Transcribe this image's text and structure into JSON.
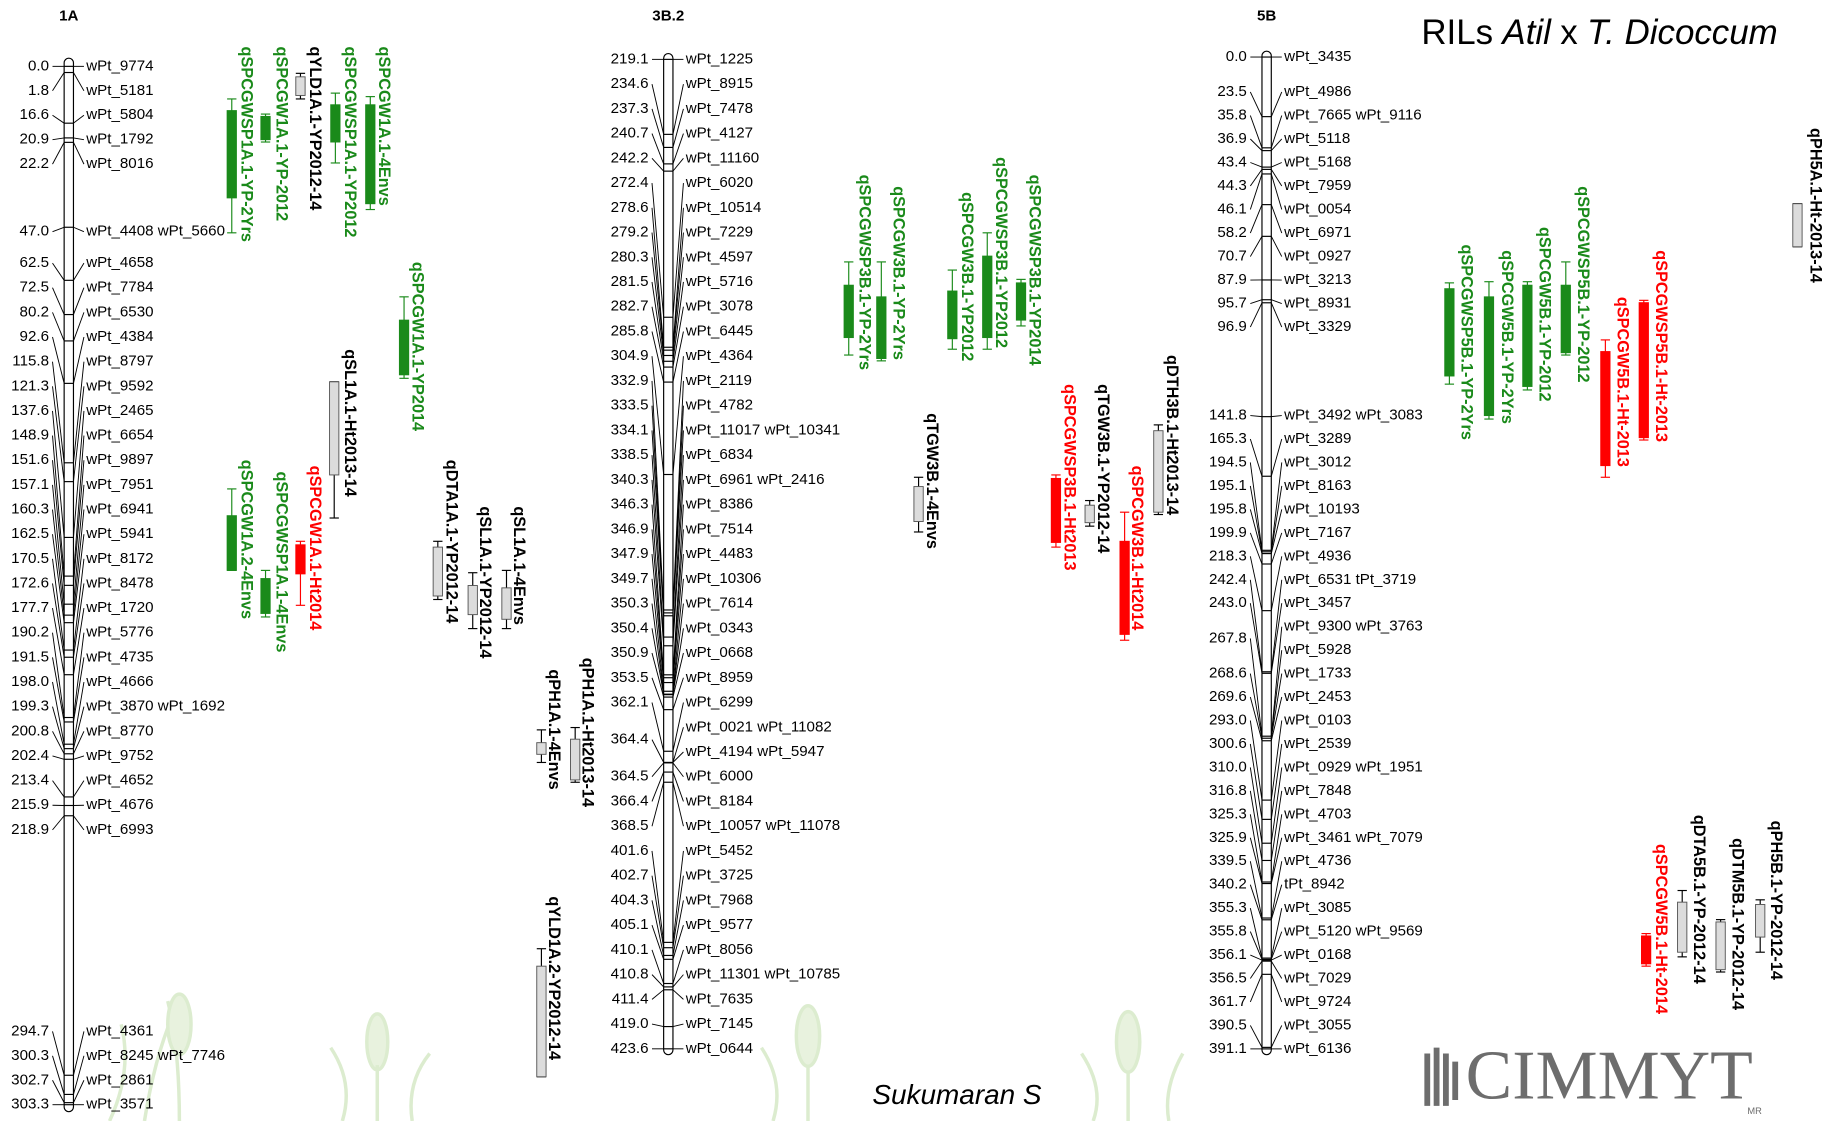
{
  "title": {
    "prefix": "RILs",
    "italic1": "Atil",
    "mid": "x",
    "italic2": "T. Dicoccum"
  },
  "author": "Sukumaran S",
  "logo": {
    "text": "CIMMYT",
    "mark": "MR"
  },
  "chromosomes": [
    {
      "name": "1A",
      "markers": [
        {
          "pos": "0.0",
          "names": [
            "wPt_9774"
          ]
        },
        {
          "pos": "1.8",
          "names": [
            "wPt_5181"
          ]
        },
        {
          "pos": "16.6",
          "names": [
            "wPt_5804"
          ]
        },
        {
          "pos": "20.9",
          "names": [
            "wPt_1792"
          ]
        },
        {
          "pos": "22.2",
          "names": [
            "wPt_8016"
          ]
        },
        {
          "pos": "47.0",
          "names": [
            "wPt_4408 wPt_5660"
          ]
        },
        {
          "pos": "62.5",
          "names": [
            "wPt_4658"
          ]
        },
        {
          "pos": "72.5",
          "names": [
            "wPt_7784"
          ]
        },
        {
          "pos": "80.2",
          "names": [
            "wPt_6530"
          ]
        },
        {
          "pos": "92.6",
          "names": [
            "wPt_4384"
          ]
        },
        {
          "pos": "115.8",
          "names": [
            "wPt_8797"
          ]
        },
        {
          "pos": "121.3",
          "names": [
            "wPt_9592"
          ]
        },
        {
          "pos": "137.6",
          "names": [
            "wPt_2465"
          ]
        },
        {
          "pos": "148.9",
          "names": [
            "wPt_6654"
          ]
        },
        {
          "pos": "151.6",
          "names": [
            "wPt_9897"
          ]
        },
        {
          "pos": "157.1",
          "names": [
            "wPt_7951"
          ]
        },
        {
          "pos": "160.3",
          "names": [
            "wPt_6941"
          ]
        },
        {
          "pos": "162.5",
          "names": [
            "wPt_5941"
          ]
        },
        {
          "pos": "170.5",
          "names": [
            "wPt_8172"
          ]
        },
        {
          "pos": "172.6",
          "names": [
            "wPt_8478"
          ]
        },
        {
          "pos": "177.7",
          "names": [
            "wPt_1720"
          ]
        },
        {
          "pos": "190.2",
          "names": [
            "wPt_5776"
          ]
        },
        {
          "pos": "191.5",
          "names": [
            "wPt_4735"
          ]
        },
        {
          "pos": "198.0",
          "names": [
            "wPt_4666"
          ]
        },
        {
          "pos": "199.3",
          "names": [
            "wPt_3870 wPt_1692"
          ]
        },
        {
          "pos": "200.8",
          "names": [
            "wPt_8770"
          ]
        },
        {
          "pos": "202.4",
          "names": [
            "wPt_9752"
          ]
        },
        {
          "pos": "213.4",
          "names": [
            "wPt_4652"
          ]
        },
        {
          "pos": "215.9",
          "names": [
            "wPt_4676"
          ]
        },
        {
          "pos": "218.9",
          "names": [
            "wPt_6993"
          ]
        },
        {
          "pos": "294.7",
          "names": [
            "wPt_4361"
          ]
        },
        {
          "pos": "300.3",
          "names": [
            "wPt_8245 wPt_7746"
          ]
        },
        {
          "pos": "302.7",
          "names": [
            "wPt_2861"
          ]
        },
        {
          "pos": "303.3",
          "names": [
            "wPt_3571"
          ]
        }
      ]
    },
    {
      "name": "3B.2",
      "markers": [
        {
          "pos": "219.1",
          "names": [
            "wPt_1225"
          ]
        },
        {
          "pos": "234.6",
          "names": [
            "wPt_8915"
          ]
        },
        {
          "pos": "237.3",
          "names": [
            "wPt_7478"
          ]
        },
        {
          "pos": "240.7",
          "names": [
            "wPt_4127"
          ]
        },
        {
          "pos": "242.2",
          "names": [
            "wPt_11160"
          ]
        },
        {
          "pos": "272.4",
          "names": [
            "wPt_6020"
          ]
        },
        {
          "pos": "278.6",
          "names": [
            "wPt_10514"
          ]
        },
        {
          "pos": "279.2",
          "names": [
            "wPt_7229"
          ]
        },
        {
          "pos": "280.3",
          "names": [
            "wPt_4597"
          ]
        },
        {
          "pos": "281.5",
          "names": [
            "wPt_5716"
          ]
        },
        {
          "pos": "282.7",
          "names": [
            "wPt_3078"
          ]
        },
        {
          "pos": "285.8",
          "names": [
            "wPt_6445"
          ]
        },
        {
          "pos": "304.9",
          "names": [
            "wPt_4364"
          ]
        },
        {
          "pos": "332.9",
          "names": [
            "wPt_2119"
          ]
        },
        {
          "pos": "333.5",
          "names": [
            "wPt_4782"
          ]
        },
        {
          "pos": "334.1",
          "names": [
            "wPt_11017 wPt_10341"
          ]
        },
        {
          "pos": "338.5",
          "names": [
            "wPt_6834"
          ]
        },
        {
          "pos": "340.3",
          "names": [
            "wPt_6961 wPt_2416"
          ]
        },
        {
          "pos": "346.3",
          "names": [
            "wPt_8386"
          ]
        },
        {
          "pos": "346.9",
          "names": [
            "wPt_7514"
          ]
        },
        {
          "pos": "347.9",
          "names": [
            "wPt_4483"
          ]
        },
        {
          "pos": "349.7",
          "names": [
            "wPt_10306"
          ]
        },
        {
          "pos": "350.3",
          "names": [
            "wPt_7614"
          ]
        },
        {
          "pos": "350.4",
          "names": [
            "wPt_0343"
          ]
        },
        {
          "pos": "350.9",
          "names": [
            "wPt_0668"
          ]
        },
        {
          "pos": "353.5",
          "names": [
            "wPt_8959"
          ]
        },
        {
          "pos": "362.1",
          "names": [
            "wPt_6299"
          ]
        },
        {
          "pos": "364.4",
          "names": [
            "wPt_0021 wPt_11082",
            "wPt_4194 wPt_5947"
          ]
        },
        {
          "pos": "364.5",
          "names": [
            "wPt_6000"
          ]
        },
        {
          "pos": "366.4",
          "names": [
            "wPt_8184"
          ]
        },
        {
          "pos": "368.5",
          "names": [
            "wPt_10057 wPt_11078"
          ]
        },
        {
          "pos": "401.6",
          "names": [
            "wPt_5452"
          ]
        },
        {
          "pos": "402.7",
          "names": [
            "wPt_3725"
          ]
        },
        {
          "pos": "404.3",
          "names": [
            "wPt_7968"
          ]
        },
        {
          "pos": "405.1",
          "names": [
            "wPt_9577"
          ]
        },
        {
          "pos": "410.1",
          "names": [
            "wPt_8056"
          ]
        },
        {
          "pos": "410.8",
          "names": [
            "wPt_11301 wPt_10785"
          ]
        },
        {
          "pos": "411.4",
          "names": [
            "wPt_7635"
          ]
        },
        {
          "pos": "419.0",
          "names": [
            "wPt_7145"
          ]
        },
        {
          "pos": "423.6",
          "names": [
            "wPt_0644"
          ]
        }
      ]
    },
    {
      "name": "5B",
      "markers": [
        {
          "pos": "0.0",
          "names": [
            "wPt_3435"
          ]
        },
        {
          "pos": "23.5",
          "names": [
            "wPt_4986"
          ]
        },
        {
          "pos": "35.8",
          "names": [
            "wPt_7665 wPt_9116"
          ]
        },
        {
          "pos": "36.9",
          "names": [
            "wPt_5118"
          ]
        },
        {
          "pos": "43.4",
          "names": [
            "wPt_5168"
          ]
        },
        {
          "pos": "44.3",
          "names": [
            "wPt_7959"
          ]
        },
        {
          "pos": "46.1",
          "names": [
            "wPt_0054"
          ]
        },
        {
          "pos": "58.2",
          "names": [
            "wPt_6971"
          ]
        },
        {
          "pos": "70.7",
          "names": [
            "wPt_0927"
          ]
        },
        {
          "pos": "87.9",
          "names": [
            "wPt_3213"
          ]
        },
        {
          "pos": "95.7",
          "names": [
            "wPt_8931"
          ]
        },
        {
          "pos": "96.9",
          "names": [
            "wPt_3329"
          ]
        },
        {
          "pos": "141.8",
          "names": [
            "wPt_3492 wPt_3083"
          ]
        },
        {
          "pos": "165.3",
          "names": [
            "wPt_3289"
          ]
        },
        {
          "pos": "194.5",
          "names": [
            "wPt_3012"
          ]
        },
        {
          "pos": "195.1",
          "names": [
            "wPt_8163"
          ]
        },
        {
          "pos": "195.8",
          "names": [
            "wPt_10193"
          ]
        },
        {
          "pos": "199.9",
          "names": [
            "wPt_7167"
          ]
        },
        {
          "pos": "218.3",
          "names": [
            "wPt_4936"
          ]
        },
        {
          "pos": "242.4",
          "names": [
            "wPt_6531 tPt_3719"
          ]
        },
        {
          "pos": "243.0",
          "names": [
            "wPt_3457"
          ]
        },
        {
          "pos": "267.8",
          "names": [
            "wPt_9300 wPt_3763",
            "wPt_5928"
          ]
        },
        {
          "pos": "268.6",
          "names": [
            "wPt_1733"
          ]
        },
        {
          "pos": "269.6",
          "names": [
            "wPt_2453"
          ]
        },
        {
          "pos": "293.0",
          "names": [
            "wPt_0103"
          ]
        },
        {
          "pos": "300.6",
          "names": [
            "wPt_2539"
          ]
        },
        {
          "pos": "310.0",
          "names": [
            "wPt_0929 wPt_1951"
          ]
        },
        {
          "pos": "316.8",
          "names": [
            "wPt_7848"
          ]
        },
        {
          "pos": "325.3",
          "names": [
            "wPt_4703"
          ]
        },
        {
          "pos": "325.9",
          "names": [
            "wPt_3461 wPt_7079"
          ]
        },
        {
          "pos": "339.5",
          "names": [
            "wPt_4736"
          ]
        },
        {
          "pos": "340.2",
          "names": [
            "tPt_8942"
          ]
        },
        {
          "pos": "355.3",
          "names": [
            "wPt_3085"
          ]
        },
        {
          "pos": "355.8",
          "names": [
            "wPt_5120 wPt_9569"
          ]
        },
        {
          "pos": "356.1",
          "names": [
            "wPt_0168"
          ]
        },
        {
          "pos": "356.5",
          "names": [
            "wPt_7029"
          ]
        },
        {
          "pos": "361.7",
          "names": [
            "wPt_9724"
          ]
        },
        {
          "pos": "390.5",
          "names": [
            "wPt_3055"
          ]
        },
        {
          "pos": "391.1",
          "names": [
            "wPt_6136"
          ]
        }
      ]
    }
  ],
  "qtls": [
    {
      "label": "qSPCGWSP1A.1-YP-2Yrs",
      "color": "#1a8a1a"
    },
    {
      "label": "qSPCGW1A.1-YP-2012",
      "color": "#1a8a1a"
    },
    {
      "label": "qYLD1A.1-YP2012-14",
      "color": "#000000"
    },
    {
      "label": "qSPCGWSP1A.1-YP2012",
      "color": "#1a8a1a"
    },
    {
      "label": "qSPCGW1A.1-4Envs",
      "color": "#1a8a1a"
    },
    {
      "label": "qSPCGW1A.1-YP2014",
      "color": "#1a8a1a"
    },
    {
      "label": "qSL1A.1-Ht2013-14",
      "color": "#000000"
    },
    {
      "label": "qSPCGW1A.2-4Envs",
      "color": "#1a8a1a"
    },
    {
      "label": "qSPCGWSP1A.1-4Envs",
      "color": "#1a8a1a"
    },
    {
      "label": "qSPCGW1A.1-Ht2014",
      "color": "#ff0000"
    },
    {
      "label": "qDTA1A.1-YP2012-14",
      "color": "#000000"
    },
    {
      "label": "qSL1A.1-YP2012-14",
      "color": "#000000"
    },
    {
      "label": "qSL1A.1-4Envs",
      "color": "#000000"
    },
    {
      "label": "qPH1A.1-4Envs",
      "color": "#000000"
    },
    {
      "label": "qPH1A.1-Ht2013-14",
      "color": "#000000"
    },
    {
      "label": "qYLD1A.2-YP2012-14",
      "color": "#000000"
    },
    {
      "label": "qSPCGWSP3B.1-YP-2Yrs",
      "color": "#1a8a1a"
    },
    {
      "label": "qSPCGW3B.1-YP-2Yrs",
      "color": "#1a8a1a"
    },
    {
      "label": "qTGW3B.1-4Envs",
      "color": "#000000"
    },
    {
      "label": "qSPCGW3B.1-YP2012",
      "color": "#1a8a1a"
    },
    {
      "label": "qSPCGWSP3B.1-YP2012",
      "color": "#1a8a1a"
    },
    {
      "label": "qSPCGWSP3B.1-YP2014",
      "color": "#1a8a1a"
    },
    {
      "label": "qSPCGWSP3B.1-Ht2013",
      "color": "#ff0000"
    },
    {
      "label": "qTGW3B.1-YP2012-14",
      "color": "#000000"
    },
    {
      "label": "qSPCGW3B.1-Ht2014",
      "color": "#ff0000"
    },
    {
      "label": "qDTH3B.1-Ht2013-14",
      "color": "#000000"
    },
    {
      "label": "qSPCGWSP5B.1-YP-2Yrs",
      "color": "#1a8a1a"
    },
    {
      "label": "qSPCGW5B.1-YP-2Yrs",
      "color": "#1a8a1a"
    },
    {
      "label": "qSPCGW5B.1-YP-2012",
      "color": "#1a8a1a"
    },
    {
      "label": "qSPCGWSP5B.1-YP-2012",
      "color": "#1a8a1a"
    },
    {
      "label": "qSPCGW5B.1-Ht-2013",
      "color": "#ff0000"
    },
    {
      "label": "qSPCGWSP5B.1-Ht-2013",
      "color": "#ff0000"
    },
    {
      "label": "qPH5A.1-Ht-2013-14",
      "color": "#000000"
    },
    {
      "label": "qSPCGW5B.1-Ht-2014",
      "color": "#ff0000"
    },
    {
      "label": "qDTA5B.1-YP-2012-14",
      "color": "#000000"
    },
    {
      "label": "qDTM5B.1-YP-2012-14",
      "color": "#000000"
    },
    {
      "label": "qPH5B.1-YP-2012-14",
      "color": "#000000"
    }
  ]
}
